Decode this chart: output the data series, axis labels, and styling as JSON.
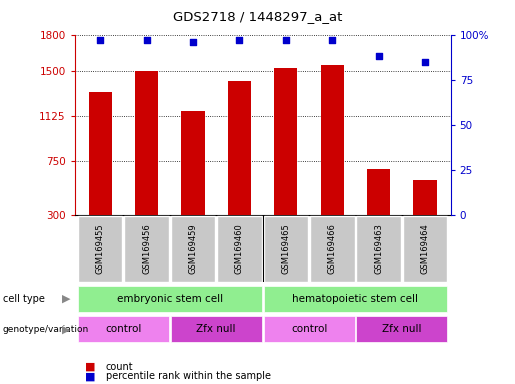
{
  "title": "GDS2718 / 1448297_a_at",
  "samples": [
    "GSM169455",
    "GSM169456",
    "GSM169459",
    "GSM169460",
    "GSM169465",
    "GSM169466",
    "GSM169463",
    "GSM169464"
  ],
  "counts": [
    1320,
    1500,
    1165,
    1410,
    1520,
    1545,
    680,
    590
  ],
  "percentiles": [
    97,
    97,
    96,
    97,
    97,
    97,
    88,
    85
  ],
  "ylim_left": [
    300,
    1800
  ],
  "ylim_right": [
    0,
    100
  ],
  "yticks_left": [
    300,
    750,
    1125,
    1500,
    1800
  ],
  "yticks_right": [
    0,
    25,
    50,
    75,
    100
  ],
  "bar_color": "#cc0000",
  "dot_color": "#0000cc",
  "cell_type_labels": [
    "embryonic stem cell",
    "hematopoietic stem cell"
  ],
  "cell_type_color": "#90ee90",
  "ctrl_color": "#ee82ee",
  "zfx_color": "#cc44cc",
  "genotype_groups": [
    {
      "start": 0,
      "end": 2,
      "color": "#ee82ee",
      "label": "control"
    },
    {
      "start": 2,
      "end": 4,
      "color": "#cc44cc",
      "label": "Zfx null"
    },
    {
      "start": 4,
      "end": 6,
      "color": "#ee82ee",
      "label": "control"
    },
    {
      "start": 6,
      "end": 8,
      "color": "#cc44cc",
      "label": "Zfx null"
    }
  ],
  "legend_count_color": "#cc0000",
  "legend_dot_color": "#0000cc",
  "sample_label_color": "#c8c8c8",
  "background_color": "#ffffff"
}
